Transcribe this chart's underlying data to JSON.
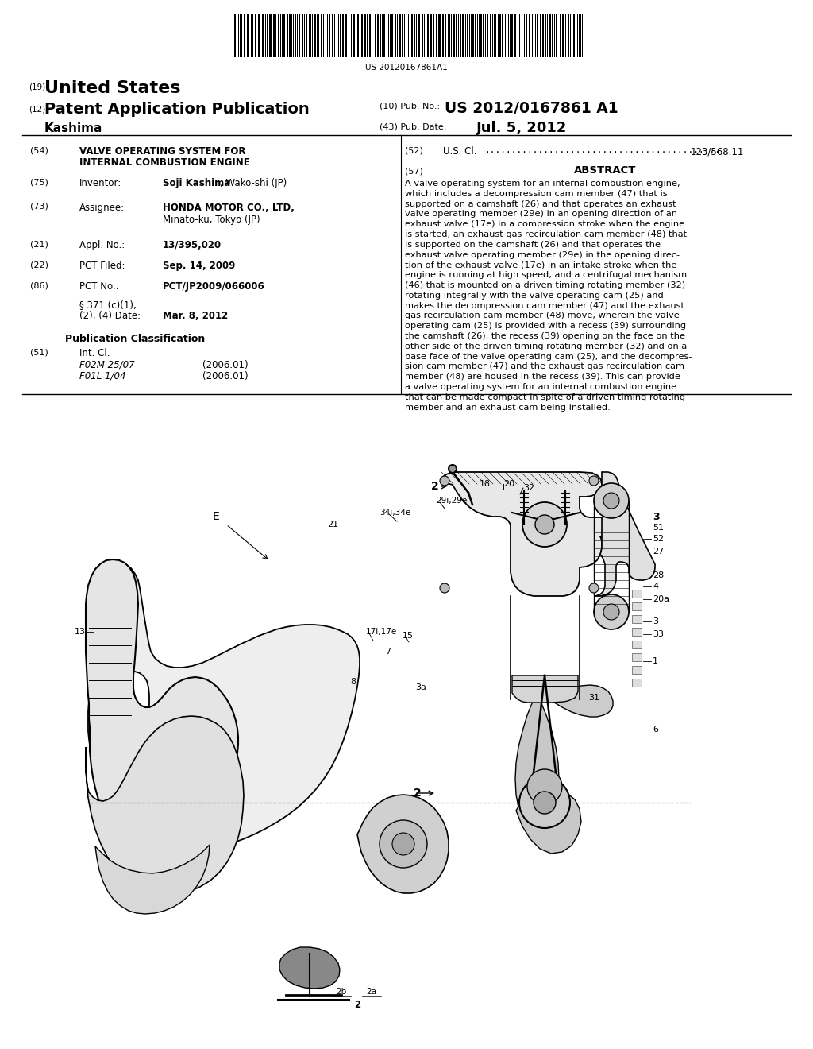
{
  "background_color": "#ffffff",
  "barcode_text": "US 20120167861A1",
  "country": "United States",
  "pub_type": "Patent Application Publication",
  "inventor_name": "Kashima",
  "pub_no_label": "(10) Pub. No.:",
  "pub_no": "US 2012/0167861 A1",
  "pub_date_label": "(43) Pub. Date:",
  "pub_date": "Jul. 5, 2012",
  "num19": "(19)",
  "num12": "(12)",
  "title_num": "(54)",
  "title_line1": "VALVE OPERATING SYSTEM FOR",
  "title_line2": "INTERNAL COMBUSTION ENGINE",
  "inventor_num": "(75)",
  "inventor_label": "Inventor:",
  "inventor_val_bold": "Soji Kashima",
  "inventor_val_rest": ", Wako-shi (JP)",
  "assignee_num": "(73)",
  "assignee_label": "Assignee:",
  "assignee_val_line1": "HONDA MOTOR CO., LTD,",
  "assignee_val_line2": "Minato-ku, Tokyo (JP)",
  "appl_num": "(21)",
  "appl_label": "Appl. No.:",
  "appl_val": "13/395,020",
  "pct_filed_num": "(22)",
  "pct_filed_label": "PCT Filed:",
  "pct_filed_val": "Sep. 14, 2009",
  "pct_no_num": "(86)",
  "pct_no_label": "PCT No.:",
  "pct_no_val": "PCT/JP2009/066006",
  "section_371a": "§ 371 (c)(1),",
  "section_371b": "(2), (4) Date:",
  "section_371_val": "Mar. 8, 2012",
  "pub_class_header": "Publication Classification",
  "int_cl_num": "(51)",
  "int_cl_label": "Int. Cl.",
  "int_cl_val1": "F02M 25/07",
  "int_cl_val1_year": "(2006.01)",
  "int_cl_val2": "F01L 1/04",
  "int_cl_val2_year": "(2006.01)",
  "us_cl_num": "(52)",
  "us_cl_label": "U.S. Cl.",
  "us_cl_dots": "............................................",
  "us_cl_val": "123/568.11",
  "abstract_num": "(57)",
  "abstract_header": "ABSTRACT",
  "abstract_lines": [
    "A valve operating system for an internal combustion engine,",
    "which includes a decompression cam member (47) that is",
    "supported on a camshaft (26) and that operates an exhaust",
    "valve operating member (29e) in an opening direction of an",
    "exhaust valve (17e) in a compression stroke when the engine",
    "is started, an exhaust gas recirculation cam member (48) that",
    "is supported on the camshaft (26) and that operates the",
    "exhaust valve operating member (29e) in the opening direc-",
    "tion of the exhaust valve (17e) in an intake stroke when the",
    "engine is running at high speed, and a centrifugal mechanism",
    "(46) that is mounted on a driven timing rotating member (32)",
    "rotating integrally with the valve operating cam (25) and",
    "makes the decompression cam member (47) and the exhaust",
    "gas recirculation cam member (48) move, wherein the valve",
    "operating cam (25) is provided with a recess (39) surrounding",
    "the camshaft (26), the recess (39) opening on the face on the",
    "other side of the driven timing rotating member (32) and on a",
    "base face of the valve operating cam (25), and the decompres-",
    "sion cam member (47) and the exhaust gas recirculation cam",
    "member (48) are housed in the recess (39). This can provide",
    "a valve operating system for an internal combustion engine",
    "that can be made compact in spite of a driven timing rotating",
    "member and an exhaust cam being installed."
  ]
}
